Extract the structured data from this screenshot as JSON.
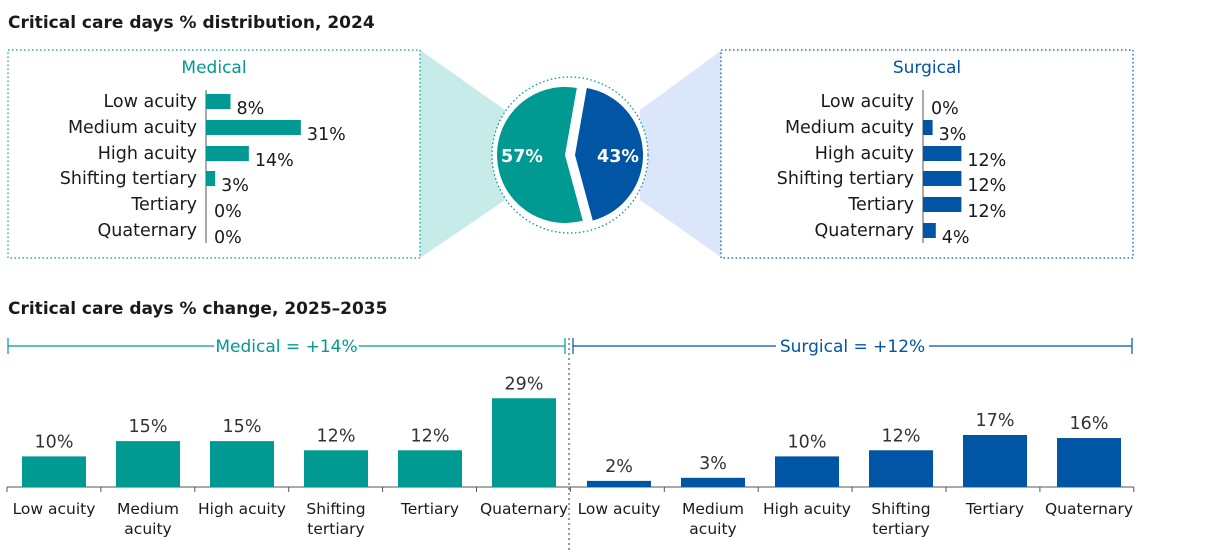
{
  "titles": {
    "distribution": "Critical care days % distribution, 2024",
    "change": "Critical care days % change, 2025–2035"
  },
  "colors": {
    "medical": "#009a93",
    "surgical": "#0055a4",
    "medical_light": "#c6ebe9",
    "surgical_light": "#dbe6fb"
  },
  "chart_data": [
    {
      "type": "bar",
      "orientation": "horizontal",
      "title": "Medical",
      "categories": [
        "Low acuity",
        "Medium acuity",
        "High acuity",
        "Shifting tertiary",
        "Tertiary",
        "Quaternary"
      ],
      "values": [
        8,
        31,
        14,
        3,
        0,
        0
      ],
      "labels": [
        "8%",
        "31%",
        "14%",
        "3%",
        "0%",
        "0%"
      ]
    },
    {
      "type": "pie",
      "categories": [
        "Medical",
        "Surgical"
      ],
      "values": [
        57,
        43
      ],
      "labels": [
        "57%",
        "43%"
      ]
    },
    {
      "type": "bar",
      "orientation": "horizontal",
      "title": "Surgical",
      "categories": [
        "Low acuity",
        "Medium acuity",
        "High acuity",
        "Shifting tertiary",
        "Tertiary",
        "Quaternary"
      ],
      "values": [
        0,
        3,
        12,
        12,
        12,
        4
      ],
      "labels": [
        "0%",
        "3%",
        "12%",
        "12%",
        "12%",
        "4%"
      ]
    },
    {
      "type": "bar",
      "groups": [
        {
          "label": "Medical = +14%",
          "categories": [
            "Low acuity",
            [
              "Medium",
              "acuity"
            ],
            "High acuity",
            [
              "Shifting",
              "tertiary"
            ],
            "Tertiary",
            "Quaternary"
          ],
          "values": [
            10,
            15,
            15,
            12,
            12,
            29
          ],
          "labels": [
            "10%",
            "15%",
            "15%",
            "12%",
            "12%",
            "29%"
          ]
        },
        {
          "label": "Surgical = +12%",
          "categories": [
            "Low acuity",
            [
              "Medium",
              "acuity"
            ],
            "High acuity",
            [
              "Shifting",
              "tertiary"
            ],
            "Tertiary",
            "Quaternary"
          ],
          "values": [
            2,
            3,
            10,
            12,
            17,
            16
          ],
          "labels": [
            "2%",
            "3%",
            "10%",
            "12%",
            "17%",
            "16%"
          ]
        }
      ]
    }
  ]
}
